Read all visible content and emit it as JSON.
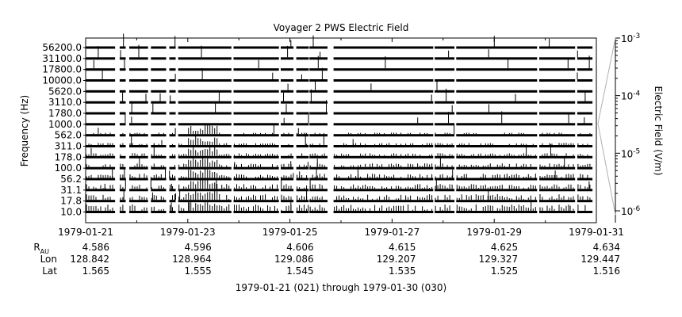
{
  "chart_data": {
    "type": "line",
    "title": "Voyager 2 PWS Electric Field",
    "ylabel": "Frequency (Hz)",
    "y_scale": "log",
    "channels_hz": [
      "56200.0",
      "31100.0",
      "17800.0",
      "10000.0",
      "5620.0",
      "3110.0",
      "1780.0",
      "1000.0",
      "562.0",
      "311.0",
      "178.0",
      "100.0",
      "56.2",
      "31.1",
      "17.8",
      "10.0"
    ],
    "x_ticks": [
      "1979-01-21",
      "1979-01-23",
      "1979-01-25",
      "1979-01-27",
      "1979-01-29",
      "1979-01-31"
    ],
    "x_range": [
      "1979-01-21",
      "1979-01-31"
    ],
    "data_gaps": [
      [
        "1979-01-21T13:50",
        "1979-01-21T16:00"
      ],
      [
        "1979-01-21T18:50",
        "1979-01-21T20:30"
      ],
      [
        "1979-01-22T05:20",
        "1979-01-22T06:40"
      ],
      [
        "1979-01-22T13:50",
        "1979-01-22T15:20"
      ],
      [
        "1979-01-22T18:20",
        "1979-01-22T19:30"
      ],
      [
        "1979-01-23T20:30",
        "1979-01-23T21:30"
      ],
      [
        "1979-01-24T18:50",
        "1979-01-24T19:40"
      ],
      [
        "1979-01-25T01:40",
        "1979-01-25T03:00"
      ],
      [
        "1979-01-25T08:50",
        "1979-01-25T09:10"
      ],
      [
        "1979-01-25T17:40",
        "1979-01-25T20:30"
      ],
      [
        "1979-01-27T19:20",
        "1979-01-27T20:00"
      ],
      [
        "1979-01-28T05:20",
        "1979-01-28T06:10"
      ],
      [
        "1979-01-29T20:10",
        "1979-01-29T21:10"
      ],
      [
        "1979-01-30T14:00",
        "1979-01-30T15:00"
      ],
      [
        "1979-01-30T22:10",
        "1979-01-30T23:59"
      ]
    ],
    "colorbar": {
      "label": "Electric Field (V/m)",
      "scale": "log",
      "range": [
        "1e-6",
        "1e-3"
      ],
      "ticks": [
        {
          "base": "10",
          "exp": "-3",
          "value": 0.001
        },
        {
          "base": "10",
          "exp": "-4",
          "value": 0.0001
        },
        {
          "base": "10",
          "exp": "-5",
          "value": 1e-05
        },
        {
          "base": "10",
          "exp": "-6",
          "value": 1e-06
        }
      ]
    },
    "position_table": {
      "row_labels": [
        {
          "main": "R",
          "sub": "AU"
        },
        {
          "main": "Lon",
          "sub": ""
        },
        {
          "main": "Lat",
          "sub": ""
        }
      ],
      "columns": [
        {
          "date": "1979-01-21",
          "r": "4.586",
          "lon": "128.842",
          "lat": "1.565"
        },
        {
          "date": "1979-01-23",
          "r": "4.596",
          "lon": "128.964",
          "lat": "1.555"
        },
        {
          "date": "1979-01-25",
          "r": "4.606",
          "lon": "129.086",
          "lat": "1.545"
        },
        {
          "date": "1979-01-27",
          "r": "4.615",
          "lon": "129.207",
          "lat": "1.535"
        },
        {
          "date": "1979-01-29",
          "r": "4.625",
          "lon": "129.327",
          "lat": "1.525"
        },
        {
          "date": "1979-01-31",
          "r": "4.634",
          "lon": "129.447",
          "lat": "1.516"
        }
      ]
    },
    "footer": "1979-01-21 (021) through 1979-01-30 (030)"
  }
}
